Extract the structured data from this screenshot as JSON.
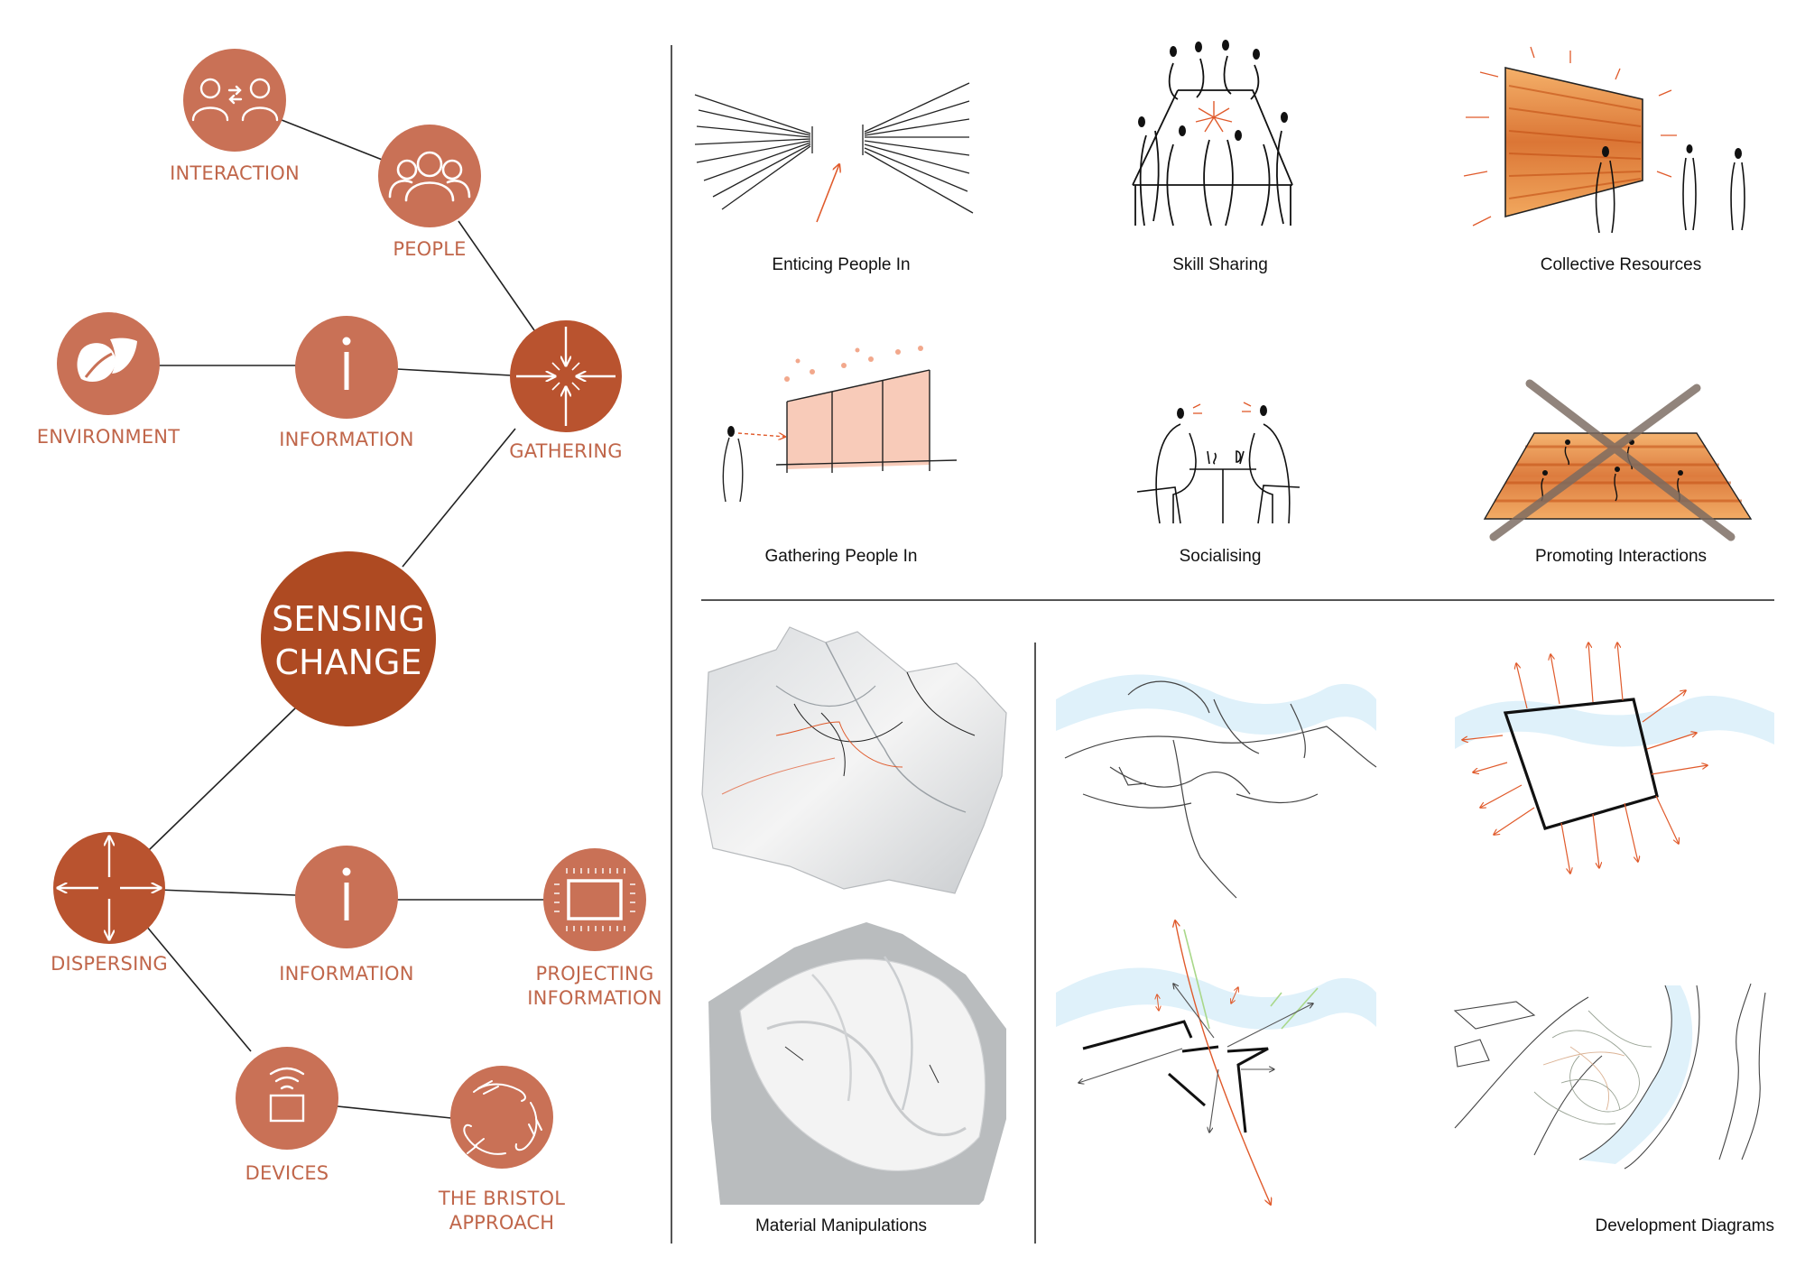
{
  "colors": {
    "node": "#c97156",
    "hub": "#b9532f",
    "center": "#ae4a22",
    "label": "#c0664a",
    "line": "#222222",
    "divider": "#555555",
    "river": "#dff1fa",
    "sketch_accent": "#e05a2b"
  },
  "center": {
    "line1": "SENSING",
    "line2": "CHANGE"
  },
  "nodes": {
    "interaction": {
      "label": "INTERACTION",
      "icon": "people-exchange-icon"
    },
    "people": {
      "label": "PEOPLE",
      "icon": "group-icon"
    },
    "environment": {
      "label": "ENVIRONMENT",
      "icon": "leaf-icon"
    },
    "information_top": {
      "label": "INFORMATION",
      "icon": "info-icon"
    },
    "gathering": {
      "label": "GATHERING",
      "icon": "converging-arrows-icon"
    },
    "dispersing": {
      "label": "DISPERSING",
      "icon": "diverging-arrows-icon"
    },
    "information_bottom": {
      "label": "INFORMATION",
      "icon": "info-icon"
    },
    "projecting": {
      "line1": "PROJECTING",
      "line2": "INFORMATION",
      "icon": "projector-screen-icon"
    },
    "devices": {
      "label": "DEVICES",
      "icon": "wireless-device-icon"
    },
    "bristol": {
      "line1": "THE BRISTOL",
      "line2": "APPROACH",
      "icon": "joined-hands-icon"
    }
  },
  "concepts": {
    "enticing": "Enticing People In",
    "skill_sharing": "Skill Sharing",
    "collective": "Collective Resources",
    "gathering_in": "Gathering People In",
    "socialising": "Socialising",
    "promoting": "Promoting Interactions"
  },
  "bottom": {
    "material": "Material Manipulations",
    "development": "Development Diagrams"
  }
}
